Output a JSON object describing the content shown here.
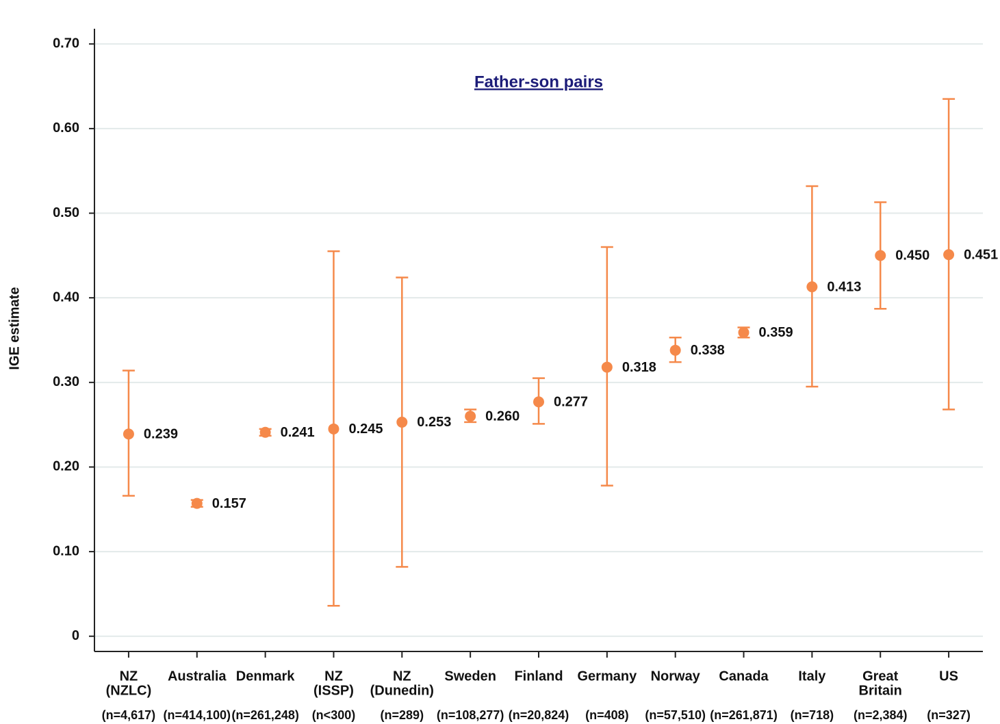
{
  "chart_data": {
    "type": "errorbar",
    "title": "Father-son pairs",
    "y_label": "IGE estimate",
    "categories": [
      [
        "NZ",
        "(NZLC)"
      ],
      [
        "Australia"
      ],
      [
        "Denmark"
      ],
      [
        "NZ",
        "(ISSP)"
      ],
      [
        "NZ",
        "(Dunedin)"
      ],
      [
        "Sweden"
      ],
      [
        "Finland"
      ],
      [
        "Germany"
      ],
      [
        "Norway"
      ],
      [
        "Canada"
      ],
      [
        "Italy"
      ],
      [
        "Great",
        "Britain"
      ],
      [
        "US"
      ]
    ],
    "n_labels": [
      "(n=4,617)",
      "(n=414,100)",
      "(n=261,248)",
      "(n<300)",
      "(n=289)",
      "(n=108,277)",
      "(n=20,824)",
      "(n=408)",
      "(n=57,510)",
      "(n=261,871)",
      "(n=718)",
      "(n=2,384)",
      "(n=327)"
    ],
    "values": [
      0.239,
      0.157,
      0.241,
      0.245,
      0.253,
      0.26,
      0.277,
      0.318,
      0.338,
      0.359,
      0.413,
      0.45,
      0.451
    ],
    "value_labels": [
      "0.239",
      "0.157",
      "0.241",
      "0.245",
      "0.253",
      "0.260",
      "0.277",
      "0.318",
      "0.338",
      "0.359",
      "0.413",
      "0.450",
      "0.451"
    ],
    "lower": [
      0.166,
      0.153,
      0.237,
      0.036,
      0.082,
      0.253,
      0.251,
      0.178,
      0.324,
      0.353,
      0.295,
      0.387,
      0.268
    ],
    "upper": [
      0.314,
      0.161,
      0.245,
      0.455,
      0.424,
      0.268,
      0.305,
      0.46,
      0.353,
      0.365,
      0.532,
      0.513,
      0.635
    ],
    "color": "#f5894a",
    "ylim": [
      -0.018,
      0.718
    ],
    "yticks": [
      0,
      {
        "value": 0.1,
        "label": "0.10"
      },
      {
        "value": 0.2,
        "label": "0.20"
      },
      {
        "value": 0.3,
        "label": "0.30"
      },
      {
        "value": 0.4,
        "label": "0.40"
      },
      {
        "value": 0.5,
        "label": "0.50"
      },
      {
        "value": 0.6,
        "label": "0.60"
      },
      {
        "value": 0.7,
        "label": "0.70"
      }
    ],
    "grid": true
  }
}
